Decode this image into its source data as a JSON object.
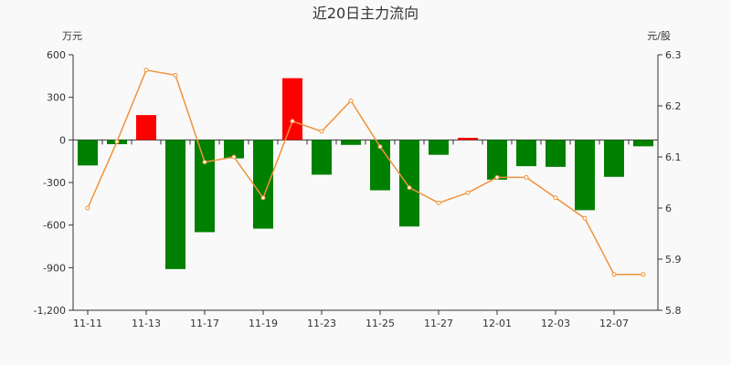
{
  "chart_data": {
    "type": "bar+line",
    "title": "近20日主力流向",
    "left_axis": {
      "unit": "万元",
      "ylim": [
        -1200,
        600
      ],
      "ticks": [
        600,
        300,
        0,
        -300,
        -600,
        -900,
        -1200
      ],
      "tick_labels": [
        "600",
        "300",
        "0",
        "-300",
        "-600",
        "-900",
        "-1,200"
      ]
    },
    "right_axis": {
      "unit": "元/股",
      "ylim": [
        5.8,
        6.3
      ],
      "ticks": [
        6.3,
        6.2,
        6.1,
        6.0,
        5.9,
        5.8
      ],
      "tick_labels": [
        "6.3",
        "6.2",
        "6.1",
        "6",
        "5.9",
        "5.8"
      ]
    },
    "x_tick_labels": [
      "11-11",
      "11-13",
      "11-17",
      "11-19",
      "11-23",
      "11-25",
      "11-27",
      "12-01",
      "12-03",
      "12-07"
    ],
    "series": [
      {
        "kind": "bar",
        "axis": "left",
        "values": [
          -180,
          -30,
          175,
          -910,
          -650,
          -130,
          -625,
          435,
          -245,
          -35,
          -355,
          -610,
          -105,
          15,
          -280,
          -185,
          -190,
          -495,
          -260,
          -45
        ]
      },
      {
        "kind": "line",
        "axis": "right",
        "values": [
          6.0,
          6.13,
          6.27,
          6.26,
          6.09,
          6.1,
          6.02,
          6.17,
          6.15,
          6.21,
          6.12,
          6.04,
          6.01,
          6.03,
          6.06,
          6.06,
          6.02,
          5.98,
          5.87,
          5.87
        ]
      }
    ],
    "colors": {
      "positive_bar": "#ff0000",
      "negative_bar": "#008000",
      "line": "#f0923a",
      "axis": "#333333"
    }
  }
}
